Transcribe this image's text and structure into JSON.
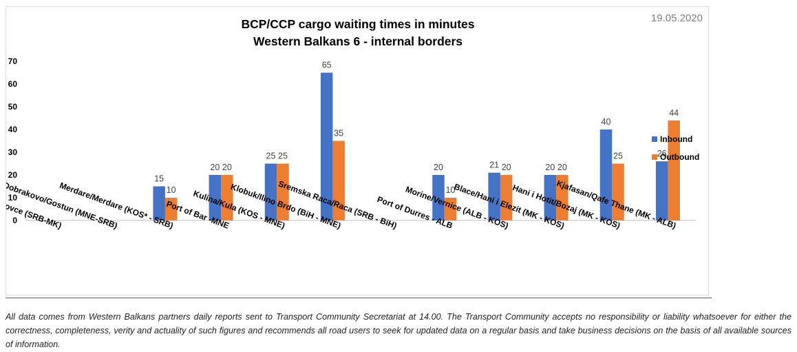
{
  "date": "19.05.2020",
  "disclaimer": "All data comes from Western Balkans partners daily reports sent to Transport Community Secretariat at 14.00. The Transport Community accepts no responsibility or liability whatsoever for either the correctness, completeness, verity and actuality of such figures and recommends all road users to seek for updated data on a regular basis and take business decisions on the basis of all available sources of information.",
  "chart_data": {
    "type": "bar",
    "title": [
      "BCP/CCP cargo waiting times in minutes",
      "Western Balkans 6 - internal borders"
    ],
    "categories": [
      "Presevo/ Tabanovce (SRB-MK)",
      "Dobrakovo/Gostun (MNE-SRB)",
      "Merdare/Merdare (KOS* - SRB)",
      "Port of Bar -MNE",
      "Kulina/Kula (KOS - MNE)",
      "Klobuk/Ilino Brdo (BiH - MNE)",
      "Sremska Raca/Raca (SRB - BiH)",
      "Port of Durres - ALB",
      "Morine/Vernice (ALB - KOS)",
      "Blace/Hani i Elezit (MK - KOS)",
      "Hani i Hotit/Bozaj (MK - KOS)",
      "Kjafasan/Qafe Thane (MK - ALB)"
    ],
    "series": [
      {
        "name": "Inbound",
        "color": "#4472c4",
        "values": [
          null,
          null,
          15,
          20,
          25,
          65,
          null,
          20,
          21,
          20,
          40,
          26
        ]
      },
      {
        "name": "Outbound",
        "color": "#ed7d31",
        "values": [
          null,
          null,
          10,
          20,
          25,
          35,
          null,
          10,
          20,
          20,
          25,
          44
        ]
      }
    ],
    "ylim": [
      0,
      70
    ],
    "yticks": [
      0,
      10,
      20,
      30,
      40,
      50,
      60,
      70
    ],
    "grid": false,
    "legend": "right",
    "data_labels": true
  }
}
